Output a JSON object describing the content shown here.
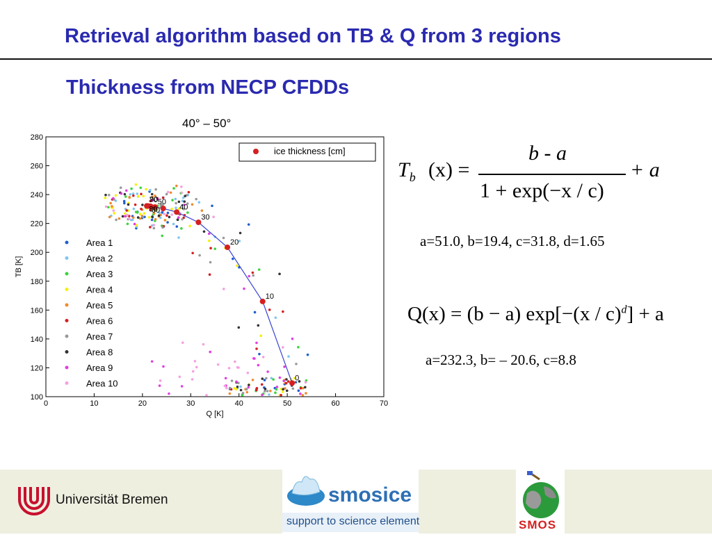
{
  "slide": {
    "title": "Retrieval algorithm based on TB & Q from 3 regions",
    "subtitle": "Thickness from NECP CFDDs"
  },
  "chart_data": {
    "type": "scatter",
    "title": "40° – 50°",
    "xlabel": "Q [K]",
    "ylabel": "TB [K]",
    "xlim": [
      0,
      70
    ],
    "ylim": [
      100,
      280
    ],
    "x_ticks": [
      "0",
      "10",
      "20",
      "30",
      "40",
      "50",
      "60",
      "70"
    ],
    "y_ticks": [
      "100",
      "120",
      "140",
      "160",
      "180",
      "200",
      "220",
      "240",
      "260",
      "280"
    ],
    "legend_main": "ice thickness [cm]",
    "legend_placement": "top-right",
    "areas_legend_placement": "left",
    "areas": [
      {
        "name": "Area 1",
        "color": "#1f5fcf"
      },
      {
        "name": "Area 2",
        "color": "#7fc6f0"
      },
      {
        "name": "Area 3",
        "color": "#3bd43b"
      },
      {
        "name": "Area 4",
        "color": "#f5f000"
      },
      {
        "name": "Area 5",
        "color": "#f08a2a"
      },
      {
        "name": "Area 6",
        "color": "#d42020"
      },
      {
        "name": "Area 7",
        "color": "#999999"
      },
      {
        "name": "Area 8",
        "color": "#333333"
      },
      {
        "name": "Area 9",
        "color": "#e040e0"
      },
      {
        "name": "Area 10",
        "color": "#f5a0e0"
      }
    ],
    "fit_curve_color": "#3a44d4",
    "thickness_points": [
      {
        "label": "0",
        "q": 51.0,
        "tb": 109.4
      },
      {
        "label": "10",
        "q": 44.9,
        "tb": 166.0
      },
      {
        "label": "20",
        "q": 37.6,
        "tb": 203.5
      },
      {
        "label": "30",
        "q": 31.6,
        "tb": 220.8
      },
      {
        "label": "40",
        "q": 27.1,
        "tb": 227.9
      },
      {
        "label": "50",
        "q": 24.3,
        "tb": 230.4
      },
      {
        "label": "60",
        "q": 22.6,
        "tb": 231.4
      },
      {
        "label": "70",
        "q": 21.7,
        "tb": 231.9
      },
      {
        "label": "80",
        "q": 21.2,
        "tb": 232.1
      },
      {
        "label": "90",
        "q": 20.9,
        "tb": 232.2
      }
    ]
  },
  "formulas": {
    "tb": {
      "lhs_T": "T",
      "lhs_sub": "b",
      "lhs_arg": "(x) =",
      "numerator": "b - a",
      "denominator": "1 + exp(−x / c)",
      "tail": "+ a"
    },
    "tb_params": "a=51.0,  b=19.4,  c=31.8,  d=1.65",
    "q": {
      "main": "Q(x) = (b − a) exp[−(x / c)",
      "sup": "d",
      "tail": "] + a"
    },
    "q_params": "a=232.3,  b= – 20.6,  c=8.8"
  },
  "footer": {
    "university": "Universität Bremen",
    "smosice": "smosice",
    "smosice_tagline": "support to science element",
    "smos": "SMOS"
  }
}
